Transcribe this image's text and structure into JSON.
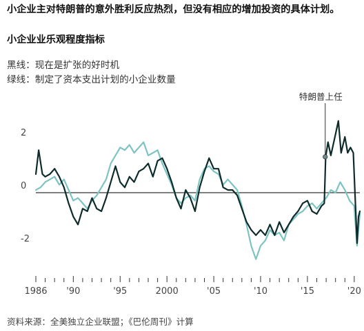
{
  "headline": "小企业主对特朗普的意外胜利反应热烈，但没有相应的增加投资的具体计划。",
  "subtitle": "小企业业乐观程度指标",
  "legend_black": "黑线：现在是扩张的好时机",
  "legend_green": "绿线：制定了资本支出计划的小企业数量",
  "source": "资料来源：全美独立企业联盟；《巴伦周刊》计算",
  "colors": {
    "black_series": "#0d2b2b",
    "green_series": "#7cc3c1",
    "axis": "#333333"
  },
  "chart_data": {
    "type": "line",
    "xlim": [
      1986,
      2020.6
    ],
    "ylim": [
      -2.9,
      2.9
    ],
    "x_ticks": [
      1986,
      1990,
      1995,
      2000,
      2005,
      2010,
      2015,
      2020
    ],
    "x_tick_labels": [
      "1986",
      "'90",
      "'95",
      "2000",
      "'05",
      "'10",
      "'15",
      "'20"
    ],
    "y_ticks": [
      2,
      0,
      -2
    ],
    "y_tick_labels": [
      "2",
      "0",
      "-2"
    ],
    "annotation": {
      "label": "特朗普上任",
      "x": 2016.9,
      "y": 1.35
    },
    "series": [
      {
        "color": "#0d2b2b",
        "points": [
          [
            1986,
            0.7
          ],
          [
            1986.3,
            1.6
          ],
          [
            1986.7,
            0.7
          ],
          [
            1987,
            0.6
          ],
          [
            1987.5,
            0.7
          ],
          [
            1988,
            0.9
          ],
          [
            1988.5,
            0.6
          ],
          [
            1989,
            0.2
          ],
          [
            1989.5,
            -0.4
          ],
          [
            1990,
            -0.9
          ],
          [
            1990.5,
            -1.2
          ],
          [
            1991,
            -0.6
          ],
          [
            1991.5,
            -0.7
          ],
          [
            1992,
            -0.2
          ],
          [
            1992.5,
            -0.6
          ],
          [
            1993,
            -0.7
          ],
          [
            1993.5,
            -0.2
          ],
          [
            1994,
            0.4
          ],
          [
            1994.5,
            1.0
          ],
          [
            1995,
            0.4
          ],
          [
            1995.5,
            0.2
          ],
          [
            1996,
            0.6
          ],
          [
            1996.5,
            0.4
          ],
          [
            1997,
            0.8
          ],
          [
            1997.5,
            0.9
          ],
          [
            1998,
            1.1
          ],
          [
            1998.5,
            0.6
          ],
          [
            1999,
            1.2
          ],
          [
            1999.5,
            1.3
          ],
          [
            2000,
            0.9
          ],
          [
            2000.5,
            0.4
          ],
          [
            2001,
            -0.2
          ],
          [
            2001.5,
            -0.6
          ],
          [
            2002,
            0.1
          ],
          [
            2002.5,
            -0.2
          ],
          [
            2003,
            -0.7
          ],
          [
            2003.5,
            0.2
          ],
          [
            2004,
            0.8
          ],
          [
            2004.5,
            1.3
          ],
          [
            2005,
            0.9
          ],
          [
            2005.5,
            0.9
          ],
          [
            2006,
            0.2
          ],
          [
            2006.5,
            0.1
          ],
          [
            2007,
            0.1
          ],
          [
            2007.5,
            -0.1
          ],
          [
            2008,
            -0.6
          ],
          [
            2008.5,
            -1.1
          ],
          [
            2009,
            -1.4
          ],
          [
            2009.5,
            -1.6
          ],
          [
            2010,
            -1.4
          ],
          [
            2010.5,
            -1.6
          ],
          [
            2011,
            -1.2
          ],
          [
            2011.5,
            -1.6
          ],
          [
            2012,
            -1.1
          ],
          [
            2012.5,
            -1.5
          ],
          [
            2013,
            -1.2
          ],
          [
            2013.5,
            -0.9
          ],
          [
            2014,
            -0.7
          ],
          [
            2014.5,
            -0.4
          ],
          [
            2015,
            -0.3
          ],
          [
            2015.5,
            -0.7
          ],
          [
            2016,
            -0.8
          ],
          [
            2016.5,
            -0.5
          ],
          [
            2016.8,
            -0.4
          ],
          [
            2016.95,
            1.35
          ],
          [
            2017.2,
            1.9
          ],
          [
            2017.5,
            1.4
          ],
          [
            2018,
            2.2
          ],
          [
            2018.3,
            2.7
          ],
          [
            2018.6,
            1.5
          ],
          [
            2019,
            2.1
          ],
          [
            2019.3,
            1.5
          ],
          [
            2019.6,
            1.7
          ],
          [
            2019.9,
            1.5
          ],
          [
            2020.1,
            -0.2
          ],
          [
            2020.3,
            -1.9
          ],
          [
            2020.45,
            -0.9
          ],
          [
            2020.6,
            -0.7
          ]
        ]
      },
      {
        "color": "#7cc3c1",
        "points": [
          [
            1986,
            0.1
          ],
          [
            1986.5,
            0.2
          ],
          [
            1987,
            0.4
          ],
          [
            1987.5,
            0.5
          ],
          [
            1988,
            0.6
          ],
          [
            1988.5,
            0.3
          ],
          [
            1989,
            0.5
          ],
          [
            1989.5,
            0.1
          ],
          [
            1990,
            -0.3
          ],
          [
            1990.5,
            -0.2
          ],
          [
            1991,
            -0.4
          ],
          [
            1991.5,
            -0.6
          ],
          [
            1992,
            -0.3
          ],
          [
            1992.5,
            -0.1
          ],
          [
            1993,
            0.2
          ],
          [
            1993.5,
            0.5
          ],
          [
            1994,
            1.1
          ],
          [
            1994.5,
            1.4
          ],
          [
            1995,
            1.7
          ],
          [
            1995.5,
            1.6
          ],
          [
            1996,
            1.8
          ],
          [
            1996.5,
            1.5
          ],
          [
            1997,
            1.7
          ],
          [
            1997.5,
            1.9
          ],
          [
            1998,
            1.4
          ],
          [
            1998.5,
            1.5
          ],
          [
            1999,
            1.6
          ],
          [
            1999.5,
            1.1
          ],
          [
            2000,
            0.7
          ],
          [
            2000.5,
            0.3
          ],
          [
            2001,
            -0.2
          ],
          [
            2001.5,
            -0.4
          ],
          [
            2002,
            -0.2
          ],
          [
            2002.5,
            -0.1
          ],
          [
            2003,
            -0.3
          ],
          [
            2003.5,
            0.5
          ],
          [
            2004,
            0.9
          ],
          [
            2004.5,
            1.0
          ],
          [
            2005,
            0.8
          ],
          [
            2005.5,
            0.7
          ],
          [
            2006,
            0.3
          ],
          [
            2006.5,
            0.5
          ],
          [
            2007,
            0.3
          ],
          [
            2007.5,
            0.1
          ],
          [
            2008,
            -0.5
          ],
          [
            2008.5,
            -1.2
          ],
          [
            2009,
            -2.0
          ],
          [
            2009.5,
            -2.5
          ],
          [
            2010,
            -2.0
          ],
          [
            2010.5,
            -1.8
          ],
          [
            2011,
            -1.4
          ],
          [
            2011.5,
            -1.6
          ],
          [
            2012,
            -1.5
          ],
          [
            2012.5,
            -1.8
          ],
          [
            2013,
            -1.2
          ],
          [
            2013.5,
            -1.0
          ],
          [
            2014,
            -0.8
          ],
          [
            2014.5,
            -0.7
          ],
          [
            2015,
            -0.5
          ],
          [
            2015.5,
            -0.4
          ],
          [
            2016,
            -0.6
          ],
          [
            2016.5,
            -0.4
          ],
          [
            2017,
            -0.2
          ],
          [
            2017.5,
            0.1
          ],
          [
            2018,
            0.0
          ],
          [
            2018.5,
            0.4
          ],
          [
            2019,
            0.1
          ],
          [
            2019.5,
            -0.3
          ],
          [
            2020,
            -0.5
          ],
          [
            2020.3,
            -2.0
          ],
          [
            2020.6,
            -0.8
          ]
        ]
      }
    ]
  }
}
